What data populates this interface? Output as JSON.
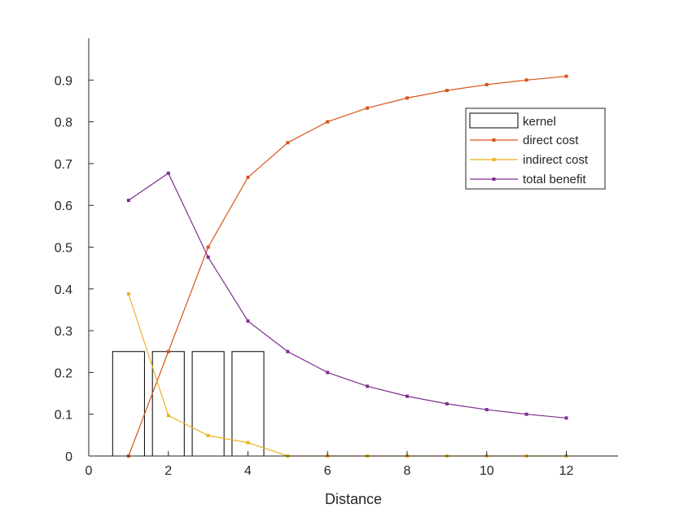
{
  "chart_data": {
    "type": "line",
    "title": "",
    "xlabel": "Distance",
    "ylabel": "",
    "xlim": [
      0,
      13.3
    ],
    "ylim": [
      0,
      1.0
    ],
    "xticks": [
      0,
      2,
      4,
      6,
      8,
      10,
      12
    ],
    "yticks": [
      0,
      0.1,
      0.2,
      0.3,
      0.4,
      0.5,
      0.6,
      0.7,
      0.8,
      0.9
    ],
    "grid": false,
    "legend_position": "top-right",
    "bars": {
      "name": "kernel",
      "x": [
        1,
        2,
        3,
        4
      ],
      "values": [
        0.25,
        0.25,
        0.25,
        0.25
      ],
      "bar_width": 0.8,
      "color": "#000000"
    },
    "series": [
      {
        "name": "direct cost",
        "color": "#D95319",
        "x": [
          1,
          2,
          3,
          4,
          5,
          6,
          7,
          8,
          9,
          10,
          11,
          12
        ],
        "values": [
          0,
          0.25,
          0.5,
          0.667,
          0.75,
          0.8,
          0.833,
          0.857,
          0.875,
          0.889,
          0.9,
          0.909
        ]
      },
      {
        "name": "indirect cost",
        "color": "#EDB120",
        "x": [
          1,
          2,
          3,
          4,
          5,
          6,
          7,
          8,
          9,
          10,
          11,
          12
        ],
        "values": [
          0.388,
          0.097,
          0.049,
          0.032,
          0,
          0,
          0,
          0,
          0,
          0,
          0,
          0
        ]
      },
      {
        "name": "total benefit",
        "color": "#7E2F8E",
        "x": [
          1,
          2,
          3,
          4,
          5,
          6,
          7,
          8,
          9,
          10,
          11,
          12
        ],
        "values": [
          0.612,
          0.677,
          0.476,
          0.323,
          0.25,
          0.2,
          0.167,
          0.143,
          0.125,
          0.111,
          0.1,
          0.091
        ]
      }
    ]
  }
}
